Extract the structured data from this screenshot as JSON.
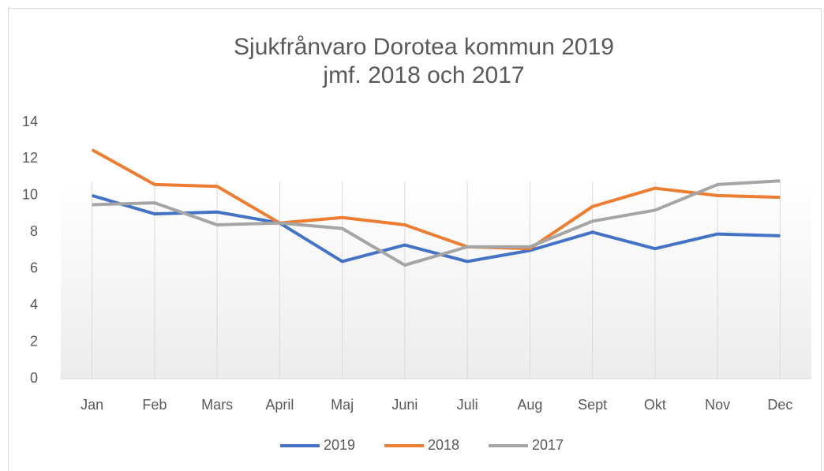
{
  "chart_data": {
    "type": "line",
    "title": "Sjukfrånvaro Dorotea kommun 2019 jmf. 2018 och 2017",
    "categories": [
      "Jan",
      "Feb",
      "Mars",
      "April",
      "Maj",
      "Juni",
      "Juli",
      "Aug",
      "Sept",
      "Okt",
      "Nov",
      "Dec"
    ],
    "series": [
      {
        "name": "2019",
        "color": "#4472c4",
        "values": [
          10,
          9,
          9.1,
          8.5,
          6.4,
          7.3,
          6.4,
          7.0,
          8.0,
          7.1,
          7.9,
          7.8
        ]
      },
      {
        "name": "2018",
        "color": "#ed7d31",
        "values": [
          12.5,
          10.6,
          10.5,
          8.5,
          8.8,
          8.4,
          7.2,
          7.1,
          9.4,
          10.4,
          10.0,
          9.9
        ]
      },
      {
        "name": "2017",
        "color": "#a5a5a5",
        "values": [
          9.5,
          9.6,
          8.4,
          8.5,
          8.2,
          6.2,
          7.2,
          7.2,
          8.6,
          9.2,
          10.6,
          10.8
        ]
      }
    ],
    "ylim": [
      0,
      14
    ],
    "yticks": [
      0,
      2,
      4,
      6,
      8,
      10,
      12,
      14
    ],
    "grid": "vertical",
    "legend": "bottom"
  }
}
